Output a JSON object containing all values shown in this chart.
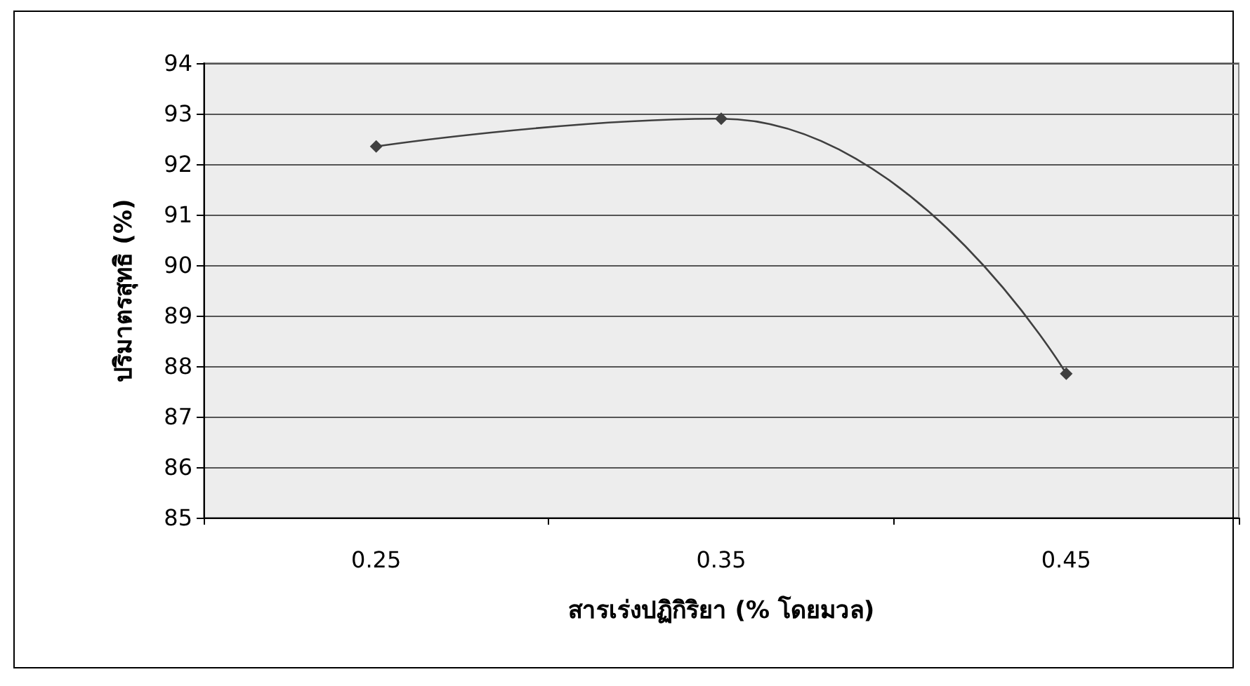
{
  "chart_data": {
    "type": "line",
    "xlabel": "สารเร่งปฏิกิริยา (% โดยมวล)",
    "ylabel": "ปริมาตรสุทธิ (%)",
    "categories": [
      "0.25",
      "0.35",
      "0.45"
    ],
    "series": [
      {
        "color": "#404040",
        "values": [
          92.35,
          92.9,
          87.85
        ]
      }
    ],
    "ylim": [
      85,
      94
    ],
    "yticks": [
      85,
      86,
      87,
      88,
      89,
      90,
      91,
      92,
      93,
      94
    ],
    "grid": "y",
    "marker": "diamond",
    "line_style": "solid"
  }
}
